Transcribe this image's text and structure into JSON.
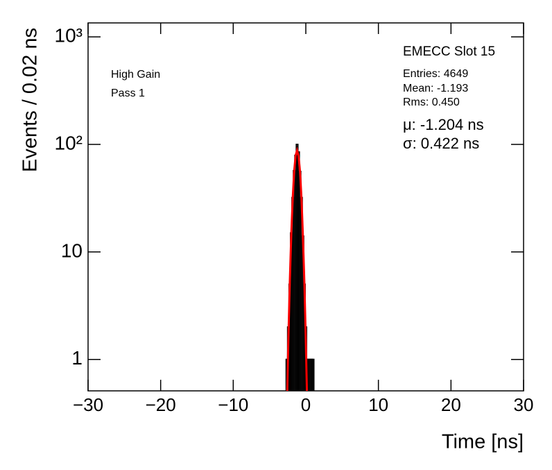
{
  "chart_data": {
    "type": "histogram",
    "title": "EMECC Slot 15",
    "xlabel": "Time [ns]",
    "ylabel": "Events / 0.02 ns",
    "annotations": [
      "High Gain",
      "Pass 1"
    ],
    "stats": [
      "Entries: 4649",
      "Mean: -1.193",
      "Rms: 0.450"
    ],
    "fit_labels": [
      "μ: -1.204 ns",
      "σ: 0.422 ns"
    ],
    "bins": [
      -2.7,
      -2.5,
      -2.3,
      -2.1,
      -1.9,
      -1.7,
      -1.5,
      -1.3,
      -1.1,
      -0.9,
      -0.7,
      -0.5,
      -0.3,
      -0.1,
      0.1,
      0.3,
      0.5,
      0.7,
      0.9,
      1.1
    ],
    "values": [
      1,
      2,
      5,
      15,
      32,
      57,
      79,
      100,
      85,
      56,
      32,
      14,
      5,
      2,
      1,
      1,
      1,
      1,
      1
    ],
    "color": "#000000",
    "fit": {
      "color": "#ff0000",
      "x": [
        -2.6,
        -2.4,
        -2.2,
        -2.0,
        -1.8,
        -1.6,
        -1.4,
        -1.204,
        -1.0,
        -0.8,
        -0.6,
        -0.4,
        -0.2,
        0,
        0.2
      ],
      "y": [
        0.37,
        1.6,
        5.4,
        14.9,
        32,
        57,
        79,
        88,
        78,
        56,
        32,
        14,
        5.2,
        1.5,
        0.35
      ]
    },
    "xlim": [
      -30,
      30
    ],
    "xticks": [
      {
        "value": -30,
        "label": "−30"
      },
      {
        "value": -20,
        "label": "−20"
      },
      {
        "value": -10,
        "label": "−10"
      },
      0,
      10,
      20,
      30
    ],
    "ylim": [
      0.51,
      1350
    ],
    "yticks": [
      1,
      10,
      {
        "value": 100,
        "label": "10²"
      },
      {
        "value": 1000,
        "label": "10³"
      }
    ],
    "ylog": true
  }
}
